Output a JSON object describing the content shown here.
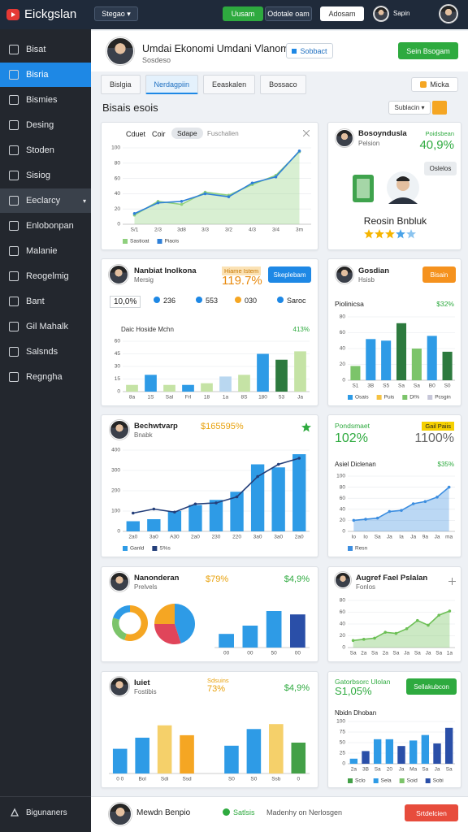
{
  "topbar": {
    "logo": "Eickgslan",
    "menu": "Stegao",
    "buttons": [
      "Uusam",
      "Odotale oam",
      "Adosam"
    ],
    "user": "Sapin"
  },
  "sidebar": {
    "items": [
      "Bisat",
      "Bisria",
      "Bismies",
      "Desing",
      "Stoden",
      "Sisiog",
      "Eeclarcy",
      "Enlobonpan",
      "Malanie",
      "Reogelmig",
      "Bant",
      "Gil Mahalk",
      "Salsnds",
      "Regngha"
    ],
    "active": 1,
    "highlighted": 6,
    "footer": "Bigunaners"
  },
  "profile": {
    "name": "Umdai Ekonomi Umdani Vlanom",
    "handle": "Sosdeso",
    "action": "Sobbact",
    "primary": "Sein Bsogam"
  },
  "tabs": {
    "items": [
      "Bislgia",
      "Nerdagpiin",
      "Eeaskalen",
      "Bossaco"
    ],
    "active": 1,
    "filter": "Micka"
  },
  "section": {
    "title": "Bisais esois",
    "select": "Sublacin"
  },
  "cards": [
    {
      "tags": [
        "Cduet",
        "Coir",
        "Sdape",
        "Fuschalien"
      ],
      "chart": {
        "type": "line",
        "categories": [
          "S/1",
          "2/3",
          "3d8",
          "3/3",
          "3/2",
          "4/3",
          "3/4",
          "3m"
        ],
        "ylim": [
          0,
          100
        ],
        "yticks": [
          0,
          20,
          40,
          60,
          80,
          100
        ],
        "grid": true,
        "markers": true,
        "series": [
          {
            "name": "Sastioat",
            "color": "#8fd07e",
            "type": "area",
            "values": [
              12,
              30,
              26,
              42,
              38,
              52,
              64,
              95
            ]
          },
          {
            "name": "Piaois",
            "color": "#2f80d8",
            "values": [
              14,
              28,
              30,
              40,
              36,
              54,
              62,
              96
            ]
          }
        ]
      }
    },
    {
      "name": "Bosoyndusla",
      "role": "Pelsion",
      "stat_label": "Poidsbean",
      "stat": "40,9%",
      "action": "Oslelos",
      "title": "Reosin Bnbluk"
    },
    {
      "name": "Nanbiat Inolkona",
      "role": "Mersig",
      "badge": "Hiame Istem",
      "stat": "119.7%",
      "action": "Skeplebam",
      "stats": [
        "10,0%",
        "236",
        "553",
        "030",
        "Saroc"
      ],
      "chart_title": "Daic Hoside Mchn",
      "note": "413%",
      "chart": {
        "type": "bar",
        "categories": [
          "8a",
          "1S",
          "Sal",
          "Frl",
          "18",
          "1a",
          "8S",
          "180",
          "53",
          "Ja"
        ],
        "ylim": [
          0,
          60
        ],
        "yticks": [
          0,
          15,
          30,
          45,
          60
        ],
        "grid": true,
        "series": [
          {
            "values": [
              8,
              20,
              8,
              8,
              10,
              18,
              20,
              45,
              38,
              48
            ],
            "colors": [
              "#c5e3a5",
              "#2e9be6",
              "#c5e3a5",
              "#2e9be6",
              "#c5e3a5",
              "#b9d7f0",
              "#c5e3a5",
              "#2e9be6",
              "#2d7a3e",
              "#c5e3a5"
            ]
          }
        ]
      }
    },
    {
      "name": "Gosdian",
      "role": "Hsisb",
      "action": "Bisain",
      "chart_title": "Piolinicsa",
      "note": "$32%",
      "chart": {
        "type": "bar",
        "categories": [
          "S1",
          "3B",
          "S5",
          "Sa",
          "Sa",
          "B0",
          "S0"
        ],
        "ylim": [
          0,
          80
        ],
        "yticks": [
          0,
          20,
          40,
          60,
          80
        ],
        "grid": true,
        "series": [
          {
            "values": [
              18,
              52,
              50,
              72,
              40,
              56,
              36
            ],
            "colors": [
              "#7cc46a",
              "#2e9be6",
              "#2e9be6",
              "#2d7a3e",
              "#7cc46a",
              "#2e9be6",
              "#2d7a3e"
            ]
          }
        ],
        "legend": [
          {
            "name": "Osais",
            "color": "#2e9be6"
          },
          {
            "name": "Puis",
            "color": "#f5c242"
          },
          {
            "name": "Dl%",
            "color": "#7cc46a"
          },
          {
            "name": "Pcsgin",
            "color": "#c7c7d9"
          }
        ]
      }
    },
    {
      "name": "Bechwtvarp",
      "role": "Bnabk",
      "stat": "$165595%",
      "chart": {
        "type": "bar",
        "categories": [
          "2a0",
          "3a0",
          "A30",
          "2a0",
          "230",
          "220",
          "3a0",
          "3a0",
          "2a0"
        ],
        "ylim": [
          0,
          400
        ],
        "yticks": [
          0,
          100,
          200,
          300,
          400
        ],
        "grid": true,
        "markers": true,
        "series": [
          {
            "name": "Ganld",
            "color": "#2e9be6",
            "values": [
              50,
              60,
              100,
              130,
              155,
              195,
              330,
              315,
              380
            ]
          },
          {
            "name": "S%s",
            "color": "#243f7a",
            "type": "line",
            "values": [
              90,
              110,
              95,
              135,
              140,
              170,
              270,
              330,
              360
            ]
          }
        ]
      }
    },
    {
      "title": "Pondsmaet",
      "badge": "Gail Paiis",
      "stat": "102%",
      "stat2": "1100%",
      "chart_title": "Asiel Diclenan",
      "note": "$35%",
      "chart": {
        "type": "line",
        "categories": [
          "Io",
          "Io",
          "Sa",
          "Ja",
          "Ia",
          "Ja",
          "9a",
          "Ja",
          "ma"
        ],
        "ylim": [
          0,
          100
        ],
        "yticks": [
          0,
          20,
          40,
          60,
          80,
          100
        ],
        "grid": true,
        "markers": true,
        "series": [
          {
            "name": "Resn",
            "color": "#3d8ee0",
            "type": "area",
            "values": [
              20,
              22,
              24,
              36,
              38,
              50,
              54,
              62,
              80
            ]
          }
        ]
      }
    },
    {
      "name": "Nanonderan",
      "role": "Prelvels",
      "stat": "$79%",
      "stat2": "$4,9%",
      "donut": {
        "type": "pie",
        "donut": true,
        "values": [
          55,
          25,
          20
        ],
        "colors": [
          "#f5a623",
          "#7cc46a",
          "#2e9be6"
        ]
      },
      "pie": {
        "type": "pie",
        "values": [
          45,
          30,
          25
        ],
        "colors": [
          "#2e9be6",
          "#e0455a",
          "#f5a623"
        ]
      },
      "chart": {
        "type": "bar",
        "categories": [
          "00",
          "00",
          "50",
          "00"
        ],
        "ylim": [
          0,
          100
        ],
        "series": [
          {
            "values": [
              28,
              45,
              75,
              68
            ],
            "colors": [
              "#2e9be6",
              "#2e9be6",
              "#2e9be6",
              "#2a4fa8"
            ]
          }
        ]
      }
    },
    {
      "name": "Augref Fael Pslalan",
      "role": "Fonlos",
      "chart": {
        "type": "line",
        "categories": [
          "Sa",
          "2a",
          "Sa",
          "2a",
          "Sa",
          "Ja",
          "Sa",
          "Ja",
          "Sa",
          "1a"
        ],
        "ylim": [
          0,
          80
        ],
        "yticks": [
          0,
          20,
          40,
          60,
          80
        ],
        "grid": true,
        "markers": true,
        "series": [
          {
            "color": "#6cbf55",
            "type": "area",
            "values": [
              12,
              14,
              16,
              26,
              24,
              32,
              46,
              38,
              55,
              62
            ]
          }
        ]
      }
    },
    {
      "name": "Iuiet",
      "role": "Fostibis",
      "badge": "Sdsuins",
      "stat": "73%",
      "stat2": "$4,9%",
      "chart": {
        "type": "bar",
        "categories": [
          "0 0",
          "Bol",
          "Sdi",
          "Ssd",
          null,
          "S0",
          "S0",
          "Ssb",
          "0"
        ],
        "ylim": [
          0,
          100
        ],
        "series": [
          {
            "values": [
              40,
              58,
              78,
              62,
              null,
              45,
              72,
              80,
              50
            ],
            "colors": [
              "#2e9be6",
              "#2e9be6",
              "#f5d06a",
              "#f5a623",
              "#2e9be6",
              "#2e9be6",
              "#2e9be6",
              "#f5d06a",
              "#43a047"
            ]
          }
        ]
      }
    },
    {
      "title": "Gatorbsorc Ulolan",
      "stat": "S1,05%",
      "action": "Sellakubcon",
      "chart_title": "Nbidn Dhoban",
      "chart": {
        "type": "bar",
        "categories": [
          "2a",
          "3B",
          "Sa",
          "20",
          "Ja",
          "Ma",
          "Sa",
          "Ja",
          "Sa"
        ],
        "ylim": [
          0,
          100
        ],
        "yticks": [
          0,
          25,
          50,
          75,
          100
        ],
        "grid": true,
        "series": [
          {
            "values": [
              12,
              30,
              58,
              58,
              42,
              55,
              68,
              48,
              85
            ],
            "colors": [
              "#2e9be6",
              "#2a4fa8",
              "#2e9be6",
              "#2e9be6",
              "#2a4fa8",
              "#2e9be6",
              "#2e9be6",
              "#2a4fa8",
              "#2a4fa8"
            ]
          }
        ],
        "legend": [
          {
            "name": "Sclo",
            "color": "#43a047"
          },
          {
            "name": "Sela",
            "color": "#2e9be6"
          },
          {
            "name": "Soid",
            "color": "#7cc46a"
          },
          {
            "name": "Sobi",
            "color": "#2a4fa8"
          }
        ]
      }
    }
  ],
  "footer": {
    "name": "Mewdn Benpio",
    "status": "Satlsis",
    "note": "Madenhy on Nerlosgen",
    "action": "Srtdelcien"
  }
}
